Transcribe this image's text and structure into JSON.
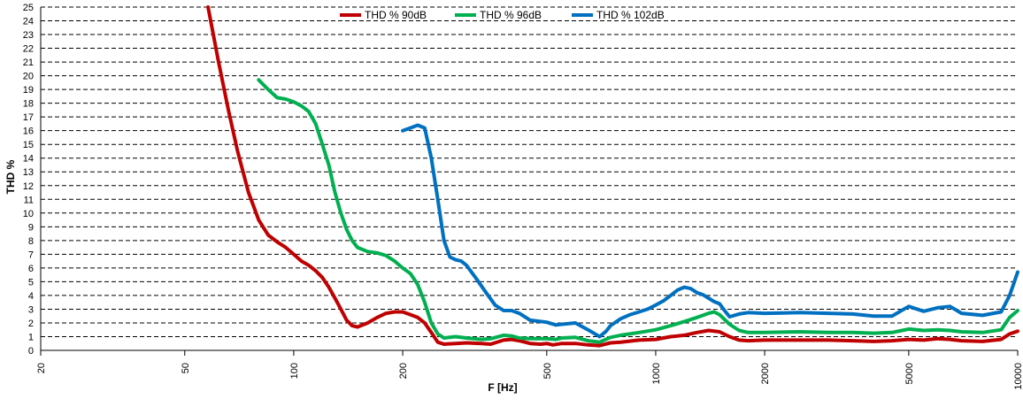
{
  "chart_data": {
    "type": "line",
    "xlabel": "F [Hz]",
    "ylabel": "THD %",
    "x_scale": "log",
    "xlim": [
      20,
      10000
    ],
    "ylim": [
      0,
      25
    ],
    "x_ticks": [
      20,
      50,
      100,
      200,
      500,
      1000,
      2000,
      5000,
      10000
    ],
    "y_ticks": [
      0,
      1,
      2,
      3,
      4,
      5,
      6,
      7,
      8,
      9,
      10,
      11,
      12,
      13,
      14,
      15,
      16,
      17,
      18,
      19,
      20,
      21,
      22,
      23,
      24,
      25
    ],
    "grid": "horizontal dashed",
    "legend_position": "top-center",
    "series": [
      {
        "name": "THD % 90dB",
        "color": "#c00000",
        "points": [
          [
            58,
            25
          ],
          [
            62,
            21
          ],
          [
            66,
            17.5
          ],
          [
            70,
            14.5
          ],
          [
            75,
            11.5
          ],
          [
            80,
            9.5
          ],
          [
            85,
            8.4
          ],
          [
            90,
            7.9
          ],
          [
            95,
            7.5
          ],
          [
            100,
            7
          ],
          [
            105,
            6.5
          ],
          [
            110,
            6.2
          ],
          [
            115,
            5.8
          ],
          [
            120,
            5.3
          ],
          [
            125,
            4.6
          ],
          [
            130,
            3.8
          ],
          [
            135,
            3
          ],
          [
            140,
            2.2
          ],
          [
            145,
            1.8
          ],
          [
            150,
            1.7
          ],
          [
            160,
            2
          ],
          [
            170,
            2.4
          ],
          [
            180,
            2.7
          ],
          [
            190,
            2.8
          ],
          [
            200,
            2.8
          ],
          [
            210,
            2.6
          ],
          [
            220,
            2.4
          ],
          [
            230,
            2
          ],
          [
            240,
            1.3
          ],
          [
            250,
            0.6
          ],
          [
            260,
            0.45
          ],
          [
            280,
            0.5
          ],
          [
            300,
            0.55
          ],
          [
            330,
            0.5
          ],
          [
            350,
            0.45
          ],
          [
            380,
            0.75
          ],
          [
            400,
            0.8
          ],
          [
            420,
            0.7
          ],
          [
            450,
            0.5
          ],
          [
            480,
            0.45
          ],
          [
            500,
            0.5
          ],
          [
            520,
            0.4
          ],
          [
            550,
            0.5
          ],
          [
            600,
            0.5
          ],
          [
            650,
            0.4
          ],
          [
            700,
            0.35
          ],
          [
            750,
            0.55
          ],
          [
            800,
            0.6
          ],
          [
            900,
            0.75
          ],
          [
            1000,
            0.8
          ],
          [
            1100,
            1
          ],
          [
            1200,
            1.1
          ],
          [
            1300,
            1.3
          ],
          [
            1400,
            1.45
          ],
          [
            1500,
            1.35
          ],
          [
            1600,
            1
          ],
          [
            1700,
            0.75
          ],
          [
            1800,
            0.7
          ],
          [
            2000,
            0.75
          ],
          [
            2500,
            0.75
          ],
          [
            3000,
            0.75
          ],
          [
            3500,
            0.7
          ],
          [
            4000,
            0.65
          ],
          [
            4500,
            0.7
          ],
          [
            5000,
            0.8
          ],
          [
            5500,
            0.75
          ],
          [
            6000,
            0.85
          ],
          [
            6500,
            0.8
          ],
          [
            7000,
            0.7
          ],
          [
            8000,
            0.65
          ],
          [
            9000,
            0.8
          ],
          [
            9500,
            1.2
          ],
          [
            10000,
            1.4
          ]
        ]
      },
      {
        "name": "THD % 96dB",
        "color": "#00b050",
        "points": [
          [
            80,
            19.7
          ],
          [
            85,
            19
          ],
          [
            90,
            18.4
          ],
          [
            95,
            18.3
          ],
          [
            100,
            18.1
          ],
          [
            105,
            17.8
          ],
          [
            110,
            17.4
          ],
          [
            115,
            16.5
          ],
          [
            120,
            15
          ],
          [
            125,
            13.5
          ],
          [
            130,
            11.5
          ],
          [
            135,
            10
          ],
          [
            140,
            8.8
          ],
          [
            145,
            8
          ],
          [
            150,
            7.5
          ],
          [
            160,
            7.2
          ],
          [
            170,
            7.1
          ],
          [
            180,
            6.9
          ],
          [
            190,
            6.5
          ],
          [
            200,
            6
          ],
          [
            210,
            5.6
          ],
          [
            220,
            4.8
          ],
          [
            230,
            3.5
          ],
          [
            240,
            2
          ],
          [
            250,
            1.2
          ],
          [
            260,
            0.9
          ],
          [
            280,
            1
          ],
          [
            300,
            0.9
          ],
          [
            330,
            0.8
          ],
          [
            350,
            0.85
          ],
          [
            380,
            1.1
          ],
          [
            400,
            1.05
          ],
          [
            420,
            0.9
          ],
          [
            450,
            0.85
          ],
          [
            500,
            0.85
          ],
          [
            530,
            0.8
          ],
          [
            550,
            0.9
          ],
          [
            600,
            0.95
          ],
          [
            650,
            0.7
          ],
          [
            700,
            0.6
          ],
          [
            750,
            0.95
          ],
          [
            800,
            1.1
          ],
          [
            900,
            1.3
          ],
          [
            1000,
            1.5
          ],
          [
            1100,
            1.8
          ],
          [
            1200,
            2.1
          ],
          [
            1300,
            2.4
          ],
          [
            1400,
            2.7
          ],
          [
            1450,
            2.8
          ],
          [
            1500,
            2.6
          ],
          [
            1600,
            1.9
          ],
          [
            1700,
            1.45
          ],
          [
            1800,
            1.3
          ],
          [
            2000,
            1.3
          ],
          [
            2500,
            1.35
          ],
          [
            3000,
            1.3
          ],
          [
            3500,
            1.3
          ],
          [
            4000,
            1.25
          ],
          [
            4500,
            1.3
          ],
          [
            5000,
            1.55
          ],
          [
            5500,
            1.45
          ],
          [
            6000,
            1.5
          ],
          [
            6500,
            1.45
          ],
          [
            7000,
            1.35
          ],
          [
            8000,
            1.3
          ],
          [
            9000,
            1.5
          ],
          [
            9500,
            2.4
          ],
          [
            10000,
            2.9
          ]
        ]
      },
      {
        "name": "THD % 102dB",
        "color": "#0070c0",
        "points": [
          [
            200,
            16
          ],
          [
            210,
            16.2
          ],
          [
            220,
            16.4
          ],
          [
            230,
            16.2
          ],
          [
            240,
            14
          ],
          [
            250,
            11
          ],
          [
            260,
            8
          ],
          [
            270,
            6.8
          ],
          [
            280,
            6.6
          ],
          [
            290,
            6.5
          ],
          [
            300,
            6.2
          ],
          [
            320,
            5.2
          ],
          [
            340,
            4.2
          ],
          [
            360,
            3.3
          ],
          [
            380,
            2.9
          ],
          [
            400,
            2.9
          ],
          [
            420,
            2.7
          ],
          [
            450,
            2.2
          ],
          [
            500,
            2.05
          ],
          [
            530,
            1.85
          ],
          [
            550,
            1.9
          ],
          [
            600,
            2
          ],
          [
            650,
            1.5
          ],
          [
            700,
            1
          ],
          [
            730,
            1.4
          ],
          [
            750,
            1.8
          ],
          [
            800,
            2.3
          ],
          [
            850,
            2.6
          ],
          [
            900,
            2.8
          ],
          [
            950,
            3
          ],
          [
            1000,
            3.3
          ],
          [
            1050,
            3.6
          ],
          [
            1100,
            4
          ],
          [
            1150,
            4.4
          ],
          [
            1200,
            4.6
          ],
          [
            1250,
            4.5
          ],
          [
            1300,
            4.2
          ],
          [
            1350,
            4.05
          ],
          [
            1400,
            3.8
          ],
          [
            1450,
            3.55
          ],
          [
            1500,
            3.4
          ],
          [
            1550,
            2.9
          ],
          [
            1600,
            2.45
          ],
          [
            1700,
            2.65
          ],
          [
            1800,
            2.75
          ],
          [
            2000,
            2.7
          ],
          [
            2500,
            2.75
          ],
          [
            3000,
            2.7
          ],
          [
            3500,
            2.65
          ],
          [
            4000,
            2.5
          ],
          [
            4500,
            2.5
          ],
          [
            5000,
            3.2
          ],
          [
            5500,
            2.85
          ],
          [
            6000,
            3.1
          ],
          [
            6500,
            3.2
          ],
          [
            7000,
            2.7
          ],
          [
            8000,
            2.55
          ],
          [
            9000,
            2.8
          ],
          [
            9500,
            4
          ],
          [
            10000,
            5.7
          ]
        ]
      }
    ]
  }
}
